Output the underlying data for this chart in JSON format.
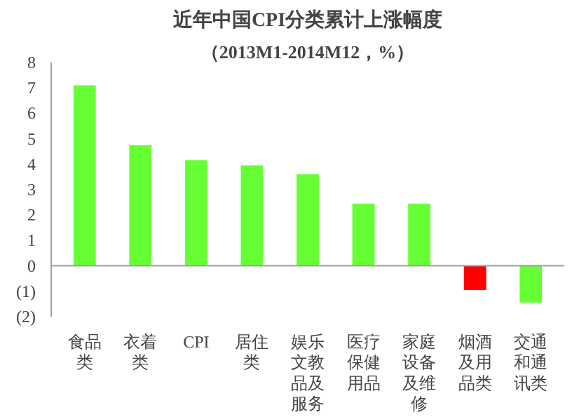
{
  "chart_data": {
    "type": "bar",
    "title": "近年中国CPI分类累计上涨幅度",
    "subtitle": "（2013M1-2014M12，%）",
    "categories": [
      "食品类",
      "衣着类",
      "CPI",
      "居住类",
      "娱乐文教品及服务",
      "医疗保健用品",
      "家庭设备及维修",
      "烟酒及用品类",
      "交通和通讯类"
    ],
    "values": [
      7.1,
      4.75,
      4.15,
      3.95,
      3.6,
      2.45,
      2.45,
      -0.95,
      -1.45
    ],
    "colors": [
      "#66ff33",
      "#66ff33",
      "#66ff33",
      "#66ff33",
      "#66ff33",
      "#66ff33",
      "#66ff33",
      "#ff0000",
      "#66ff33"
    ],
    "ylim": [
      -2,
      8
    ],
    "yticks": [
      {
        "value": -2,
        "label": "(2)"
      },
      {
        "value": -1,
        "label": "(1)"
      },
      0,
      1,
      2,
      3,
      4,
      5,
      6,
      7,
      8
    ]
  }
}
